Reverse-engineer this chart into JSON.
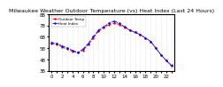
{
  "title": "Milwaukee Weather Outdoor Temperature (vs) Heat Index (Last 24 Hours)",
  "background_color": "#ffffff",
  "plot_bg_color": "#ffffff",
  "grid_color": "#cccccc",
  "temp_color": "#ff0000",
  "heat_color": "#0000ff",
  "legend_temp": "Outdoor Temp",
  "legend_heat": "Heat Index",
  "hours": [
    0,
    1,
    2,
    3,
    4,
    5,
    6,
    7,
    8,
    9,
    10,
    11,
    12,
    13,
    14,
    15,
    16,
    17,
    18,
    19,
    20,
    21,
    22,
    23
  ],
  "temp": [
    62,
    61,
    59,
    57,
    55,
    54,
    56,
    61,
    67,
    73,
    76,
    79,
    80,
    79,
    76,
    74,
    72,
    70,
    67,
    64,
    58,
    52,
    47,
    43
  ],
  "heat": [
    63,
    62,
    60,
    58,
    56,
    54,
    57,
    62,
    68,
    74,
    77,
    80,
    82,
    80,
    77,
    74,
    72,
    70,
    67,
    64,
    58,
    52,
    47,
    42
  ],
  "ylim_min": 38,
  "ylim_max": 88,
  "ytick_step": 10,
  "ylabel_color": "#000000",
  "tick_labelsize": 4,
  "title_fontsize": 4.5
}
